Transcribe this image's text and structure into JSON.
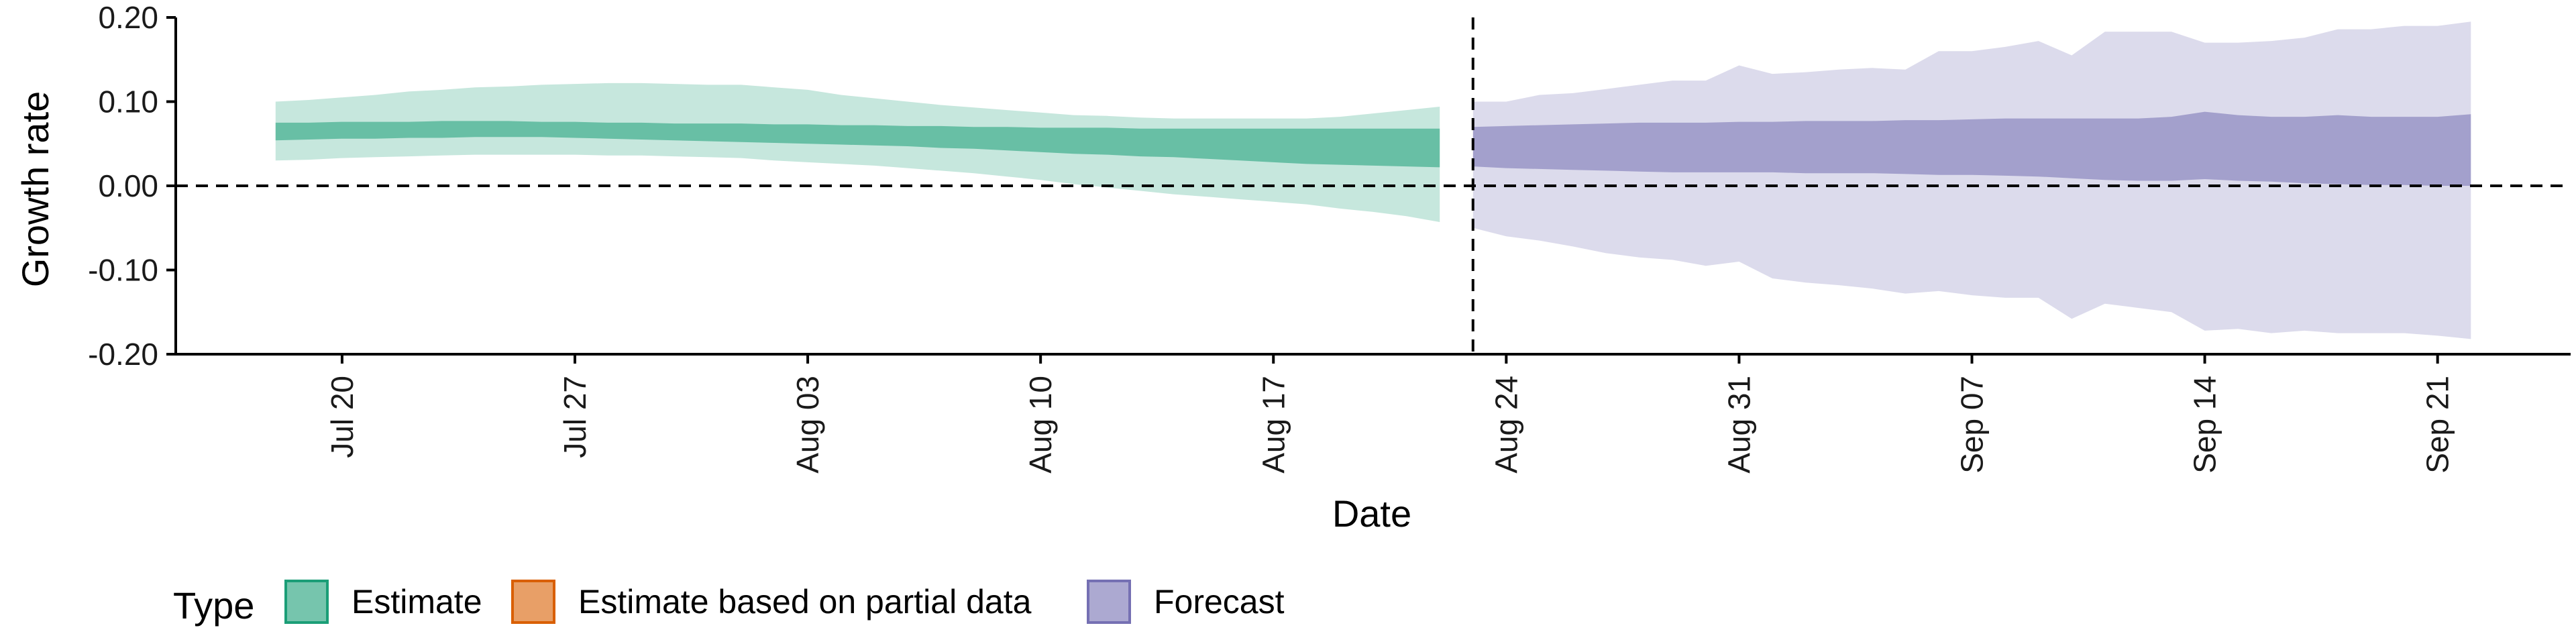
{
  "chart_data": {
    "type": "area",
    "xlabel": "Date",
    "ylabel": "Growth rate",
    "ylim": [
      -0.2,
      0.2
    ],
    "yticks": [
      0.2,
      0.1,
      0.0,
      -0.1,
      -0.2
    ],
    "ytick_labels": [
      "0.20",
      "0.10",
      "0.00",
      "-0.10",
      "-0.20"
    ],
    "xlim": [
      "2020-07-15",
      "2020-09-25"
    ],
    "xticks": [
      "2020-07-20",
      "2020-07-27",
      "2020-08-03",
      "2020-08-10",
      "2020-08-17",
      "2020-08-24",
      "2020-08-31",
      "2020-09-07",
      "2020-09-14",
      "2020-09-21"
    ],
    "xtick_labels": [
      "Jul 20",
      "Jul 27",
      "Aug 03",
      "Aug 10",
      "Aug 17",
      "Aug 24",
      "Aug 31",
      "Sep 07",
      "Sep 14",
      "Sep 21"
    ],
    "reference_lines": {
      "horizontal_y": 0.0,
      "vertical_date": "2020-08-23"
    },
    "legend": {
      "title": "Type",
      "position": "bottom",
      "entries": [
        {
          "label": "Estimate",
          "color": "#1b9e77"
        },
        {
          "label": "Estimate based on partial data",
          "color": "#d95f02"
        },
        {
          "label": "Forecast",
          "color": "#7570b3"
        }
      ]
    },
    "series": [
      {
        "name": "Estimate",
        "color": "#1b9e77",
        "x": [
          "2020-07-18",
          "2020-07-19",
          "2020-07-20",
          "2020-07-21",
          "2020-07-22",
          "2020-07-23",
          "2020-07-24",
          "2020-07-25",
          "2020-07-26",
          "2020-07-27",
          "2020-07-28",
          "2020-07-29",
          "2020-07-30",
          "2020-07-31",
          "2020-08-01",
          "2020-08-02",
          "2020-08-03",
          "2020-08-04",
          "2020-08-05",
          "2020-08-06",
          "2020-08-07",
          "2020-08-08",
          "2020-08-09",
          "2020-08-10",
          "2020-08-11",
          "2020-08-12",
          "2020-08-13",
          "2020-08-14",
          "2020-08-15",
          "2020-08-16",
          "2020-08-17",
          "2020-08-18",
          "2020-08-19",
          "2020-08-20",
          "2020-08-21",
          "2020-08-22"
        ],
        "lower_90": [
          0.03,
          0.031,
          0.033,
          0.034,
          0.035,
          0.036,
          0.037,
          0.037,
          0.037,
          0.037,
          0.036,
          0.036,
          0.035,
          0.034,
          0.033,
          0.03,
          0.028,
          0.026,
          0.024,
          0.021,
          0.018,
          0.015,
          0.011,
          0.007,
          0.002,
          -0.002,
          -0.006,
          -0.01,
          -0.013,
          -0.016,
          -0.019,
          -0.022,
          -0.027,
          -0.031,
          -0.036,
          -0.043
        ],
        "upper_90": [
          0.1,
          0.102,
          0.105,
          0.108,
          0.112,
          0.114,
          0.117,
          0.118,
          0.12,
          0.121,
          0.122,
          0.122,
          0.121,
          0.12,
          0.12,
          0.117,
          0.114,
          0.108,
          0.104,
          0.1,
          0.096,
          0.093,
          0.09,
          0.087,
          0.084,
          0.083,
          0.081,
          0.08,
          0.08,
          0.08,
          0.08,
          0.08,
          0.082,
          0.086,
          0.09,
          0.094
        ],
        "lower_50": [
          0.054,
          0.055,
          0.056,
          0.056,
          0.057,
          0.057,
          0.058,
          0.058,
          0.058,
          0.057,
          0.056,
          0.055,
          0.054,
          0.053,
          0.052,
          0.051,
          0.05,
          0.049,
          0.048,
          0.047,
          0.045,
          0.044,
          0.042,
          0.04,
          0.038,
          0.037,
          0.035,
          0.034,
          0.032,
          0.03,
          0.028,
          0.026,
          0.025,
          0.024,
          0.023,
          0.022
        ],
        "upper_50": [
          0.075,
          0.075,
          0.076,
          0.076,
          0.076,
          0.077,
          0.077,
          0.077,
          0.076,
          0.076,
          0.075,
          0.075,
          0.074,
          0.074,
          0.074,
          0.073,
          0.073,
          0.072,
          0.072,
          0.071,
          0.071,
          0.07,
          0.07,
          0.069,
          0.069,
          0.069,
          0.068,
          0.068,
          0.068,
          0.068,
          0.068,
          0.068,
          0.068,
          0.068,
          0.068,
          0.068
        ]
      },
      {
        "name": "Forecast",
        "color": "#7570b3",
        "x": [
          "2020-08-23",
          "2020-08-24",
          "2020-08-25",
          "2020-08-26",
          "2020-08-27",
          "2020-08-28",
          "2020-08-29",
          "2020-08-30",
          "2020-08-31",
          "2020-09-01",
          "2020-09-02",
          "2020-09-03",
          "2020-09-04",
          "2020-09-05",
          "2020-09-06",
          "2020-09-07",
          "2020-09-08",
          "2020-09-09",
          "2020-09-10",
          "2020-09-11",
          "2020-09-12",
          "2020-09-13",
          "2020-09-14",
          "2020-09-15",
          "2020-09-16",
          "2020-09-17",
          "2020-09-18",
          "2020-09-19",
          "2020-09-20",
          "2020-09-21",
          "2020-09-22"
        ],
        "lower_90": [
          -0.05,
          -0.06,
          -0.065,
          -0.072,
          -0.08,
          -0.085,
          -0.088,
          -0.095,
          -0.09,
          -0.11,
          -0.115,
          -0.118,
          -0.122,
          -0.128,
          -0.125,
          -0.13,
          -0.133,
          -0.133,
          -0.158,
          -0.14,
          -0.145,
          -0.15,
          -0.172,
          -0.17,
          -0.175,
          -0.172,
          -0.175,
          -0.175,
          -0.175,
          -0.178,
          -0.182
        ],
        "upper_90": [
          0.1,
          0.1,
          0.108,
          0.11,
          0.115,
          0.12,
          0.125,
          0.125,
          0.143,
          0.133,
          0.135,
          0.138,
          0.14,
          0.138,
          0.16,
          0.16,
          0.165,
          0.172,
          0.155,
          0.183,
          0.183,
          0.183,
          0.17,
          0.17,
          0.172,
          0.176,
          0.186,
          0.186,
          0.19,
          0.19,
          0.195
        ],
        "lower_50": [
          0.023,
          0.021,
          0.02,
          0.019,
          0.018,
          0.017,
          0.016,
          0.016,
          0.016,
          0.016,
          0.015,
          0.015,
          0.015,
          0.014,
          0.013,
          0.013,
          0.012,
          0.011,
          0.009,
          0.007,
          0.006,
          0.006,
          0.008,
          0.006,
          0.005,
          0.003,
          0.002,
          0.001,
          0.001,
          0.0,
          0.0
        ],
        "upper_50": [
          0.07,
          0.071,
          0.072,
          0.073,
          0.074,
          0.075,
          0.075,
          0.075,
          0.076,
          0.076,
          0.077,
          0.077,
          0.077,
          0.078,
          0.078,
          0.079,
          0.08,
          0.08,
          0.08,
          0.08,
          0.08,
          0.082,
          0.088,
          0.084,
          0.082,
          0.082,
          0.084,
          0.082,
          0.082,
          0.082,
          0.085
        ]
      }
    ]
  }
}
